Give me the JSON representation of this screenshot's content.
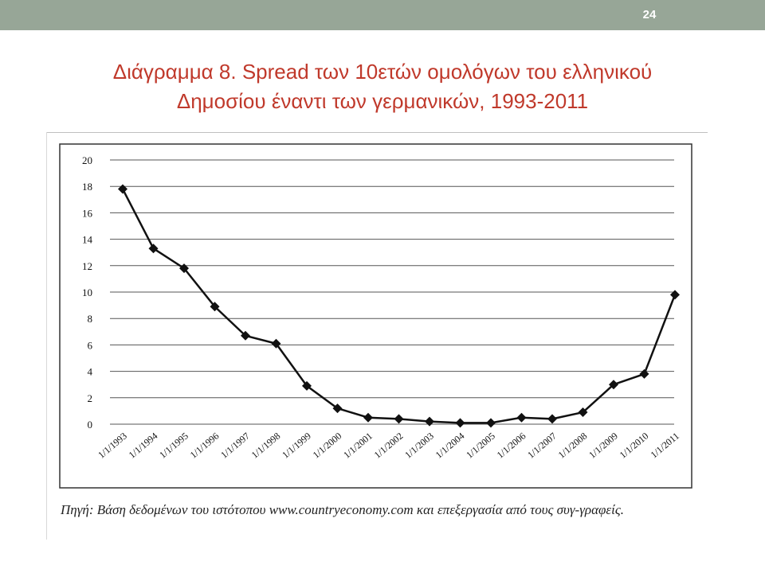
{
  "slide": {
    "page_number": "24",
    "title_line1": "Διάγραμμα 8. Spread των 10ετών ομολόγων του ελληνικού",
    "title_line2": "Δημοσίου έναντι των γερμανικών, 1993-2011",
    "caption": "Πηγή: Βάση δεδομένων του ιστότοπου www.countryeconomy.com και επεξεργασία από τους συγ-γραφείς.",
    "title_color": "#c0392b",
    "bar_color": "#97a697"
  },
  "chart_data": {
    "type": "line",
    "title": "",
    "xlabel": "",
    "ylabel": "",
    "categories": [
      "1/1/1993",
      "1/1/1994",
      "1/1/1995",
      "1/1/1996",
      "1/1/1997",
      "1/1/1998",
      "1/1/1999",
      "1/1/2000",
      "1/1/2001",
      "1/1/2002",
      "1/1/2003",
      "1/1/2004",
      "1/1/2005",
      "1/1/2006",
      "1/1/2007",
      "1/1/2008",
      "1/1/2009",
      "1/1/2010",
      "1/1/2011"
    ],
    "series": [
      {
        "name": "",
        "values": [
          17.8,
          13.3,
          11.8,
          8.9,
          6.7,
          6.1,
          2.9,
          1.2,
          0.5,
          0.4,
          0.2,
          0.1,
          0.1,
          0.5,
          0.4,
          0.9,
          3.0,
          3.8,
          9.8
        ]
      }
    ],
    "ylim": [
      0,
      20
    ],
    "yticks": [
      0,
      2,
      4,
      6,
      8,
      10,
      12,
      14,
      16,
      18,
      20
    ],
    "grid": true,
    "legend": "none",
    "line_color": "#111111"
  }
}
